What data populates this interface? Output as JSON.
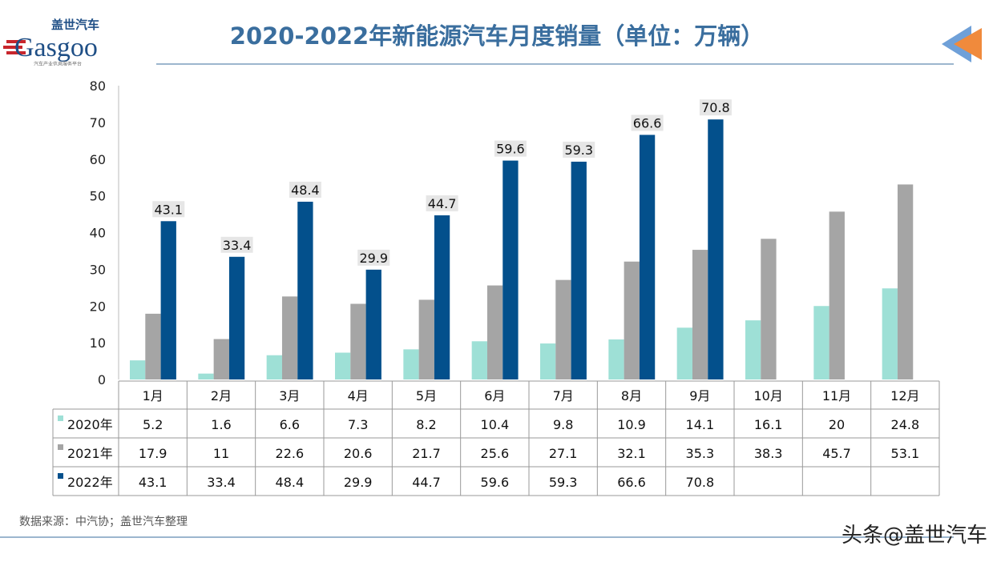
{
  "header": {
    "title": "2020-2022年新能源汽车月度销量（单位：万辆）",
    "logo_cn": "盖世汽车",
    "logo_en": "Gasgoo",
    "logo_tagline": "汽车产业信息服务平台"
  },
  "footer": {
    "source": "数据来源：中汽协；盖世汽车整理",
    "watermark": "头条@盖世汽车"
  },
  "chart_data": {
    "type": "bar",
    "title": "2020-2022年新能源汽车月度销量（单位：万辆）",
    "categories": [
      "1月",
      "2月",
      "3月",
      "4月",
      "5月",
      "6月",
      "7月",
      "8月",
      "9月",
      "10月",
      "11月",
      "12月"
    ],
    "ylim": [
      0,
      80
    ],
    "yticks": [
      0,
      10,
      20,
      30,
      40,
      50,
      60,
      70,
      80
    ],
    "grid": false,
    "legend": "data-table",
    "series": [
      {
        "name": "2020年",
        "color": "#9ee0d6",
        "values": [
          5.2,
          1.6,
          6.6,
          7.3,
          8.2,
          10.4,
          9.8,
          10.9,
          14.1,
          16.1,
          20,
          24.8
        ]
      },
      {
        "name": "2021年",
        "color": "#a5a5a5",
        "values": [
          17.9,
          11,
          22.6,
          20.6,
          21.7,
          25.6,
          27.1,
          32.1,
          35.3,
          38.3,
          45.7,
          53.1
        ]
      },
      {
        "name": "2022年",
        "color": "#03508c",
        "values": [
          43.1,
          33.4,
          48.4,
          29.9,
          44.7,
          59.6,
          59.3,
          66.6,
          70.8,
          null,
          null,
          null
        ],
        "data_labels": true
      }
    ]
  }
}
